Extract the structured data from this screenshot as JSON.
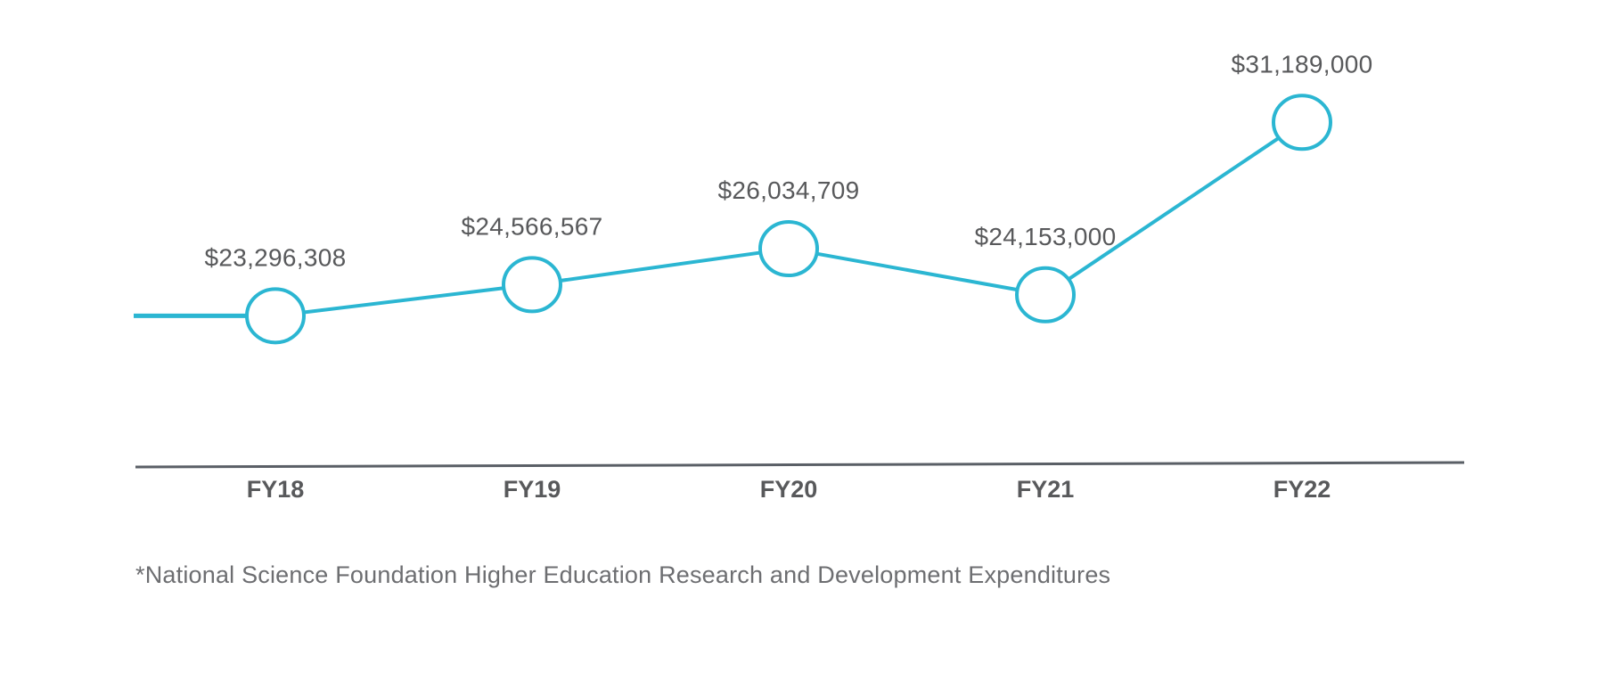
{
  "chart_data": {
    "type": "line",
    "categories": [
      "FY18",
      "FY19",
      "FY20",
      "FY21",
      "FY22"
    ],
    "series": [
      {
        "values": [
          23296308,
          24566567,
          26034709,
          24153000,
          31189000
        ],
        "labels": [
          "$23,296,308",
          "$24,566,567",
          "$26,034,709",
          "$24,153,000",
          "$31,189,000"
        ],
        "color": "#2bb6d2"
      }
    ],
    "title": "",
    "xlabel": "",
    "ylabel": "",
    "ylim": [
      18000000,
      34000000
    ],
    "grid": false,
    "legend": "none",
    "axis_color": "#5a5f66",
    "text_color": "#58595b"
  },
  "footnote": "*National Science Foundation Higher Education Research and Development Expenditures"
}
